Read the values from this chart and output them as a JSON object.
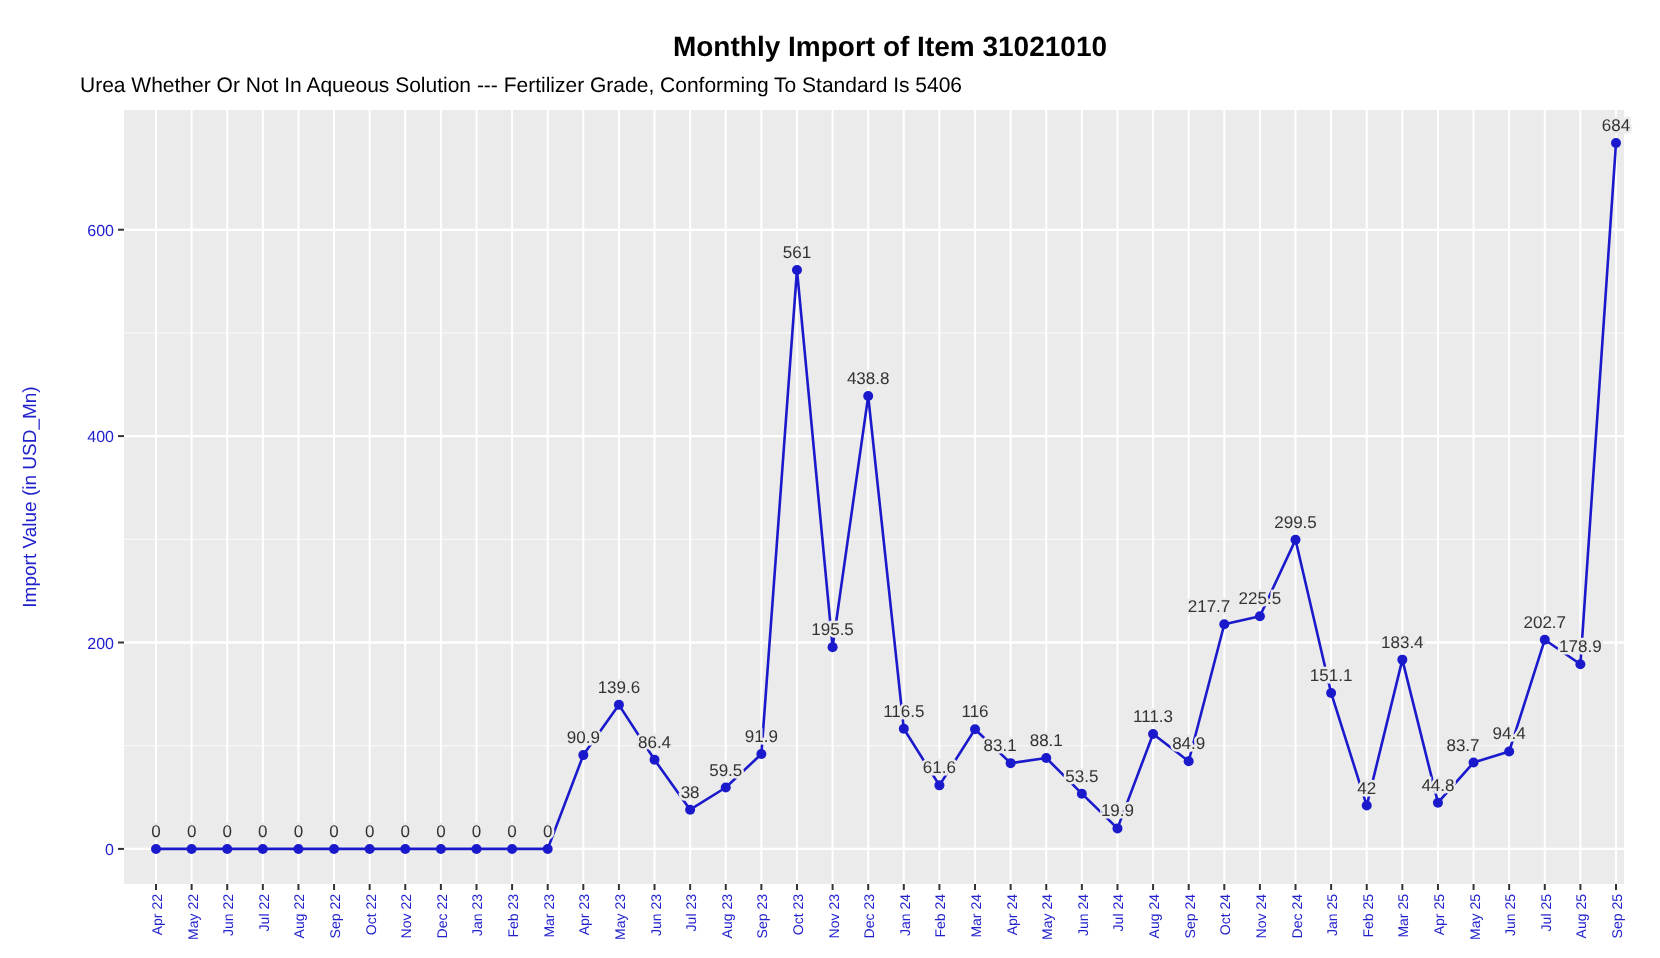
{
  "chart_data": {
    "type": "line",
    "title": "Monthly Import of Item 31021010",
    "subtitle": "Urea Whether Or Not In Aqueous Solution --- Fertilizer Grade, Conforming To Standard Is 5406",
    "ylabel": "Import  Value (in USD_Mn)",
    "categories": [
      "Apr 22",
      "May 22",
      "Jun 22",
      "Jul 22",
      "Aug 22",
      "Sep 22",
      "Oct 22",
      "Nov 22",
      "Dec 22",
      "Jan 23",
      "Feb 23",
      "Mar 23",
      "Apr 23",
      "May 23",
      "Jun 23",
      "Jul 23",
      "Aug 23",
      "Sep 23",
      "Oct 23",
      "Nov 23",
      "Dec 23",
      "Jan 24",
      "Feb 24",
      "Mar 24",
      "Apr 24",
      "May 24",
      "Jun 24",
      "Jul 24",
      "Aug 24",
      "Sep 24",
      "Oct 24",
      "Nov 24",
      "Dec 24",
      "Jan 25",
      "Feb 25",
      "Mar 25",
      "Apr 25",
      "May 25",
      "Jun 25",
      "Jul 25",
      "Aug 25",
      "Sep 25"
    ],
    "series": [
      {
        "color": "#1a1acc",
        "values": [
          0,
          0,
          0,
          0,
          0,
          0,
          0,
          0,
          0,
          0,
          0,
          0,
          90.9,
          139.6,
          86.4,
          38,
          59.5,
          91.9,
          561,
          195.5,
          438.8,
          116.5,
          61.6,
          116,
          83.1,
          88.1,
          53.5,
          19.9,
          111.3,
          84.9,
          217.7,
          225.5,
          299.5,
          151.1,
          42,
          183.4,
          44.8,
          83.7,
          94.4,
          202.7,
          178.9,
          684
        ]
      }
    ],
    "ylim": [
      -34,
      716
    ],
    "yticks": [
      0,
      200,
      400,
      600
    ],
    "grid": true,
    "marker": "circle",
    "line_style": "solid",
    "data_labels": true
  }
}
